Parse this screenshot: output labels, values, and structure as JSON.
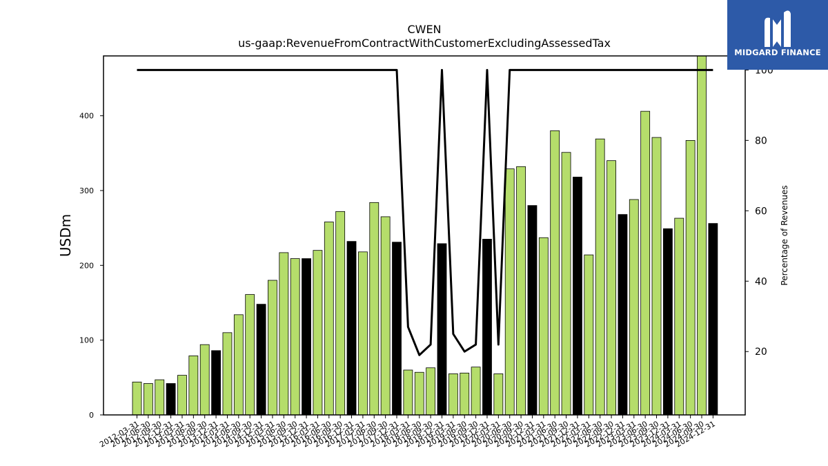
{
  "chart_data": {
    "type": "bar",
    "title": "CWEN",
    "subtitle": "us-gaap:RevenueFromContractWithCustomerExcludingAssessedTax",
    "ylabel": "USDm",
    "y2label": "Percentage of Revenues",
    "ylim": [
      0,
      480
    ],
    "y2lim": [
      2,
      104
    ],
    "yticks": [
      0,
      100,
      200,
      300,
      400
    ],
    "y2ticks": [
      20,
      40,
      60,
      80,
      100
    ],
    "colors": {
      "quarter": "#b5dd6b",
      "annual": "#000000",
      "line": "#000000"
    },
    "categories": [
      "2012-03-31",
      "2012-06-30",
      "2012-09-30",
      "2012-12-31",
      "2013-03-31",
      "2013-06-30",
      "2013-09-30",
      "2013-12-31",
      "2014-03-31",
      "2014-06-30",
      "2014-09-30",
      "2014-12-31",
      "2015-03-31",
      "2015-06-30",
      "2015-09-30",
      "2015-12-31",
      "2016-03-31",
      "2016-06-30",
      "2016-09-30",
      "2016-12-31",
      "2017-03-31",
      "2017-06-30",
      "2017-09-30",
      "2017-12-31",
      "2018-03-31",
      "2018-06-30",
      "2018-09-30",
      "2018-12-31",
      "2019-03-31",
      "2019-06-30",
      "2019-09-30",
      "2019-12-31",
      "2020-03-31",
      "2020-06-30",
      "2020-09-30",
      "2020-12-31",
      "2021-03-31",
      "2021-06-30",
      "2021-09-30",
      "2021-12-31",
      "2022-03-31",
      "2022-06-30",
      "2022-09-30",
      "2022-12-31",
      "2023-03-31",
      "2023-06-30",
      "2023-09-30",
      "2023-12-31",
      "2024-03-31",
      "2024-06-30",
      "2024-09-30",
      "2024-12-31"
    ],
    "values": [
      44,
      42,
      47,
      42,
      53,
      79,
      94,
      86,
      110,
      134,
      161,
      148,
      180,
      217,
      209,
      209,
      220,
      258,
      272,
      232,
      218,
      284,
      265,
      231,
      60,
      57,
      63,
      229,
      55,
      56,
      64,
      235,
      55,
      329,
      332,
      280,
      237,
      380,
      351,
      318,
      214,
      369,
      340,
      268,
      288,
      406,
      371,
      249,
      263,
      367,
      480,
      256
    ],
    "annual": [
      false,
      false,
      false,
      true,
      false,
      false,
      false,
      true,
      false,
      false,
      false,
      true,
      false,
      false,
      false,
      true,
      false,
      false,
      false,
      true,
      false,
      false,
      false,
      true,
      false,
      false,
      false,
      true,
      false,
      false,
      false,
      true,
      false,
      false,
      false,
      true,
      false,
      false,
      false,
      true,
      false,
      false,
      false,
      true,
      false,
      false,
      false,
      true,
      false,
      false,
      false,
      true
    ],
    "percentage": [
      100,
      100,
      100,
      100,
      100,
      100,
      100,
      100,
      100,
      100,
      100,
      100,
      100,
      100,
      100,
      100,
      100,
      100,
      100,
      100,
      100,
      100,
      100,
      100,
      27,
      19,
      22,
      100,
      25,
      20,
      22,
      100,
      22,
      100,
      100,
      100,
      100,
      100,
      100,
      100,
      100,
      100,
      100,
      100,
      100,
      100,
      100,
      100,
      100,
      100,
      100,
      100
    ],
    "grid": false,
    "legend": "none"
  },
  "logo": {
    "text": "MIDGARD FINANCE"
  }
}
